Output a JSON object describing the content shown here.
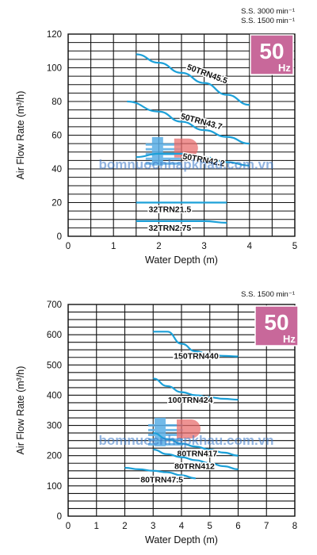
{
  "chart_data": [
    {
      "type": "line",
      "xlabel": "Water Depth (m)",
      "ylabel": "Air Flow Rate (m³/h)",
      "xlim": [
        0,
        5
      ],
      "ylim": [
        0,
        120
      ],
      "xticks": [
        "0",
        "1",
        "2",
        "3",
        "4",
        "5"
      ],
      "yticks": [
        "0",
        "20",
        "40",
        "60",
        "80",
        "100",
        "120"
      ],
      "grid": true,
      "speed_notes": [
        "S.S. 3000 min⁻¹",
        "S.S. 1500 min⁻¹"
      ],
      "badge": {
        "value": "50",
        "unit": "Hz",
        "color": "#c8689a"
      },
      "series": [
        {
          "name": "50TRN45.5",
          "x": [
            1.5,
            2.0,
            2.5,
            3.0,
            3.5,
            4.0
          ],
          "y": [
            108,
            103,
            97,
            91,
            84,
            78
          ],
          "color": "#1ca0d8"
        },
        {
          "name": "50TRN43.7",
          "x": [
            1.3,
            2.0,
            2.5,
            3.0,
            3.5,
            4.0
          ],
          "y": [
            80,
            74,
            68,
            63,
            59,
            55
          ],
          "color": "#1ca0d8"
        },
        {
          "name": "50TRN42.2",
          "x": [
            1.5,
            2.0,
            2.5,
            3.0,
            3.5,
            4.0
          ],
          "y": [
            47,
            49,
            49,
            47,
            44,
            42
          ],
          "color": "#1ca0d8"
        },
        {
          "name": "32TRN21.5",
          "x": [
            1.5,
            2.0,
            2.5,
            3.0,
            3.5
          ],
          "y": [
            20,
            20,
            20,
            20,
            20
          ],
          "color": "#1ca0d8"
        },
        {
          "name": "32TRN2.75",
          "x": [
            1.5,
            2.0,
            2.5,
            3.0,
            3.5
          ],
          "y": [
            9,
            9,
            9,
            9,
            8
          ],
          "color": "#1ca0d8"
        }
      ]
    },
    {
      "type": "line",
      "xlabel": "Water Depth (m)",
      "ylabel": "Air Flow Rate (m³/h)",
      "xlim": [
        0,
        8
      ],
      "ylim": [
        0,
        700
      ],
      "xticks": [
        "0",
        "1",
        "2",
        "3",
        "4",
        "5",
        "6",
        "7",
        "8"
      ],
      "yticks": [
        "0",
        "100",
        "200",
        "300",
        "400",
        "500",
        "600",
        "700"
      ],
      "grid": true,
      "speed_notes": [
        "S.S. 1500 min⁻¹"
      ],
      "badge": {
        "value": "50",
        "unit": "Hz",
        "color": "#c8689a"
      },
      "series": [
        {
          "name": "150TRN440",
          "x": [
            3.0,
            3.5,
            4.0,
            4.5,
            5.0,
            5.5,
            6.0
          ],
          "y": [
            610,
            610,
            570,
            545,
            535,
            530,
            528
          ],
          "color": "#1ca0d8"
        },
        {
          "name": "100TRN424",
          "x": [
            3.0,
            3.5,
            4.0,
            4.5,
            5.0,
            5.5,
            6.0
          ],
          "y": [
            455,
            430,
            410,
            400,
            393,
            388,
            385
          ],
          "color": "#1ca0d8"
        },
        {
          "name": "80TRN417",
          "x": [
            3.0,
            3.5,
            4.0,
            4.5,
            5.0,
            5.5,
            6.0
          ],
          "y": [
            275,
            255,
            240,
            230,
            220,
            210,
            200
          ],
          "color": "#1ca0d8"
        },
        {
          "name": "80TRN412",
          "x": [
            3.0,
            3.5,
            4.0,
            4.5,
            5.0,
            5.5,
            6.0
          ],
          "y": [
            220,
            205,
            195,
            185,
            175,
            165,
            155
          ],
          "color": "#1ca0d8"
        },
        {
          "name": "80TRN47.5",
          "x": [
            2.0,
            2.5,
            3.0,
            3.5,
            4.0,
            4.5
          ],
          "y": [
            160,
            155,
            150,
            145,
            135,
            125
          ],
          "color": "#1ca0d8"
        }
      ]
    }
  ],
  "watermark": "bomnuocnhapkhau.com.vn"
}
